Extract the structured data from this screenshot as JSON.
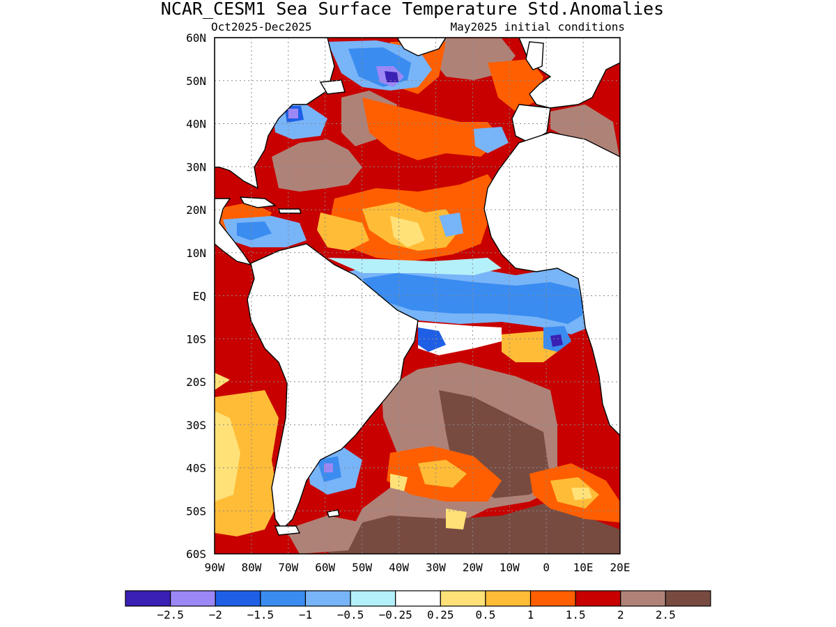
{
  "title": "NCAR_CESM1 Sea Surface Temperature Std.Anomalies",
  "subtitle_left": "Oct2025-Dec2025",
  "subtitle_right": "May2025 initial conditions",
  "map": {
    "lon_range": [
      -90,
      20
    ],
    "lat_range": [
      -60,
      60
    ],
    "lat_labels": [
      "60N",
      "50N",
      "40N",
      "30N",
      "20N",
      "10N",
      "EQ",
      "10S",
      "20S",
      "30S",
      "40S",
      "50S",
      "60S"
    ],
    "lon_labels": [
      "90W",
      "80W",
      "70W",
      "60W",
      "50W",
      "40W",
      "30W",
      "20W",
      "10W",
      "0",
      "10E",
      "20E"
    ],
    "land_color": "#ffffff",
    "grid": "dotted"
  },
  "colorbar": {
    "colors": [
      "#3b20b4",
      "#9b87f5",
      "#1e5fe6",
      "#3a8cf0",
      "#78b4f8",
      "#b4f0fa",
      "#ffffff",
      "#ffe178",
      "#ffbc37",
      "#ff5f00",
      "#c80000",
      "#af8278",
      "#784b41"
    ],
    "labels": [
      "-2.5",
      "-2",
      "-1.5",
      "-1",
      "-0.5",
      "-0.25",
      "0.25",
      "0.5",
      "1",
      "1.5",
      "2",
      "2.5"
    ]
  }
}
